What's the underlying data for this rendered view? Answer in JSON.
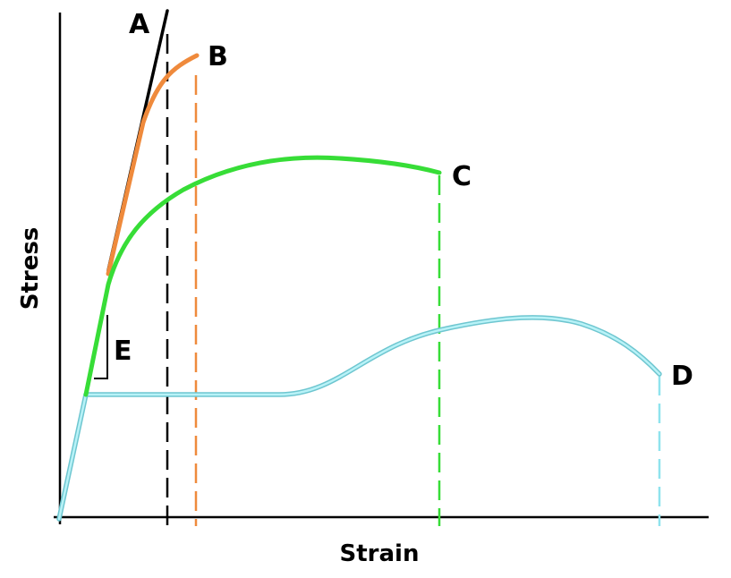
{
  "axes": {
    "x_label": "Strain",
    "y_label": "Stress"
  },
  "curves": {
    "A": {
      "label": "A",
      "color": "#000000"
    },
    "B": {
      "label": "B",
      "color": "#ef8a3c"
    },
    "C": {
      "label": "C",
      "color": "#37dd37"
    },
    "D": {
      "label": "D",
      "color": "#8fe3ee"
    }
  },
  "modulus_marker": {
    "label": "E",
    "color": "#000000"
  },
  "colors": {
    "axis": "#000000",
    "background": "#ffffff"
  }
}
